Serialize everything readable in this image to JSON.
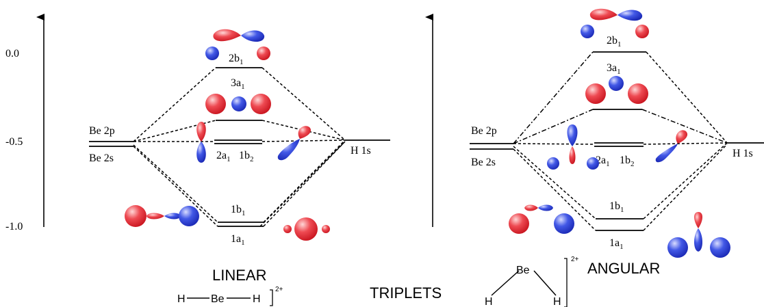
{
  "colors": {
    "line": "#000000",
    "lobe_red": "#e8303a",
    "lobe_blue": "#2a3fd6",
    "background": "#ffffff"
  },
  "y_axis": {
    "tick_labels": [
      "0.0",
      "-0.5",
      "-1.0"
    ]
  },
  "linear": {
    "be_labels": {
      "upper": "Be 2p",
      "lower": "Be 2s"
    },
    "h_label": "H 1s",
    "mo_labels": {
      "b1_top": {
        "base": "2b",
        "sub": "1"
      },
      "a1_mid": {
        "base": "3a",
        "sub": "1"
      },
      "nb_a1": {
        "base": "2a",
        "sub": "1"
      },
      "nb_b2": {
        "base": "1b",
        "sub": "2"
      },
      "b1_bottom": {
        "base": "1b",
        "sub": "1"
      },
      "a1_bottom": {
        "base": "1a",
        "sub": "1"
      }
    },
    "title": "LINEAR",
    "structure": {
      "h_left": "H",
      "be": "Be",
      "h_right": "H",
      "charge": "2+"
    }
  },
  "angular": {
    "be_labels": {
      "upper": "Be 2p",
      "lower": "Be 2s"
    },
    "h_label": "H 1s",
    "mo_labels": {
      "b1_top": {
        "base": "2b",
        "sub": "1"
      },
      "a1_mid": {
        "base": "3a",
        "sub": "1"
      },
      "nb_a1": {
        "base": "2a",
        "sub": "1"
      },
      "nb_b2": {
        "base": "1b",
        "sub": "2"
      },
      "b1_bottom": {
        "base": "1b",
        "sub": "1"
      },
      "a1_bottom": {
        "base": "1a",
        "sub": "1"
      }
    },
    "title": "ANGULAR",
    "structure": {
      "be": "Be",
      "h_left": "H",
      "h_right": "H",
      "charge": "2+"
    }
  },
  "center_label": "TRIPLETS"
}
